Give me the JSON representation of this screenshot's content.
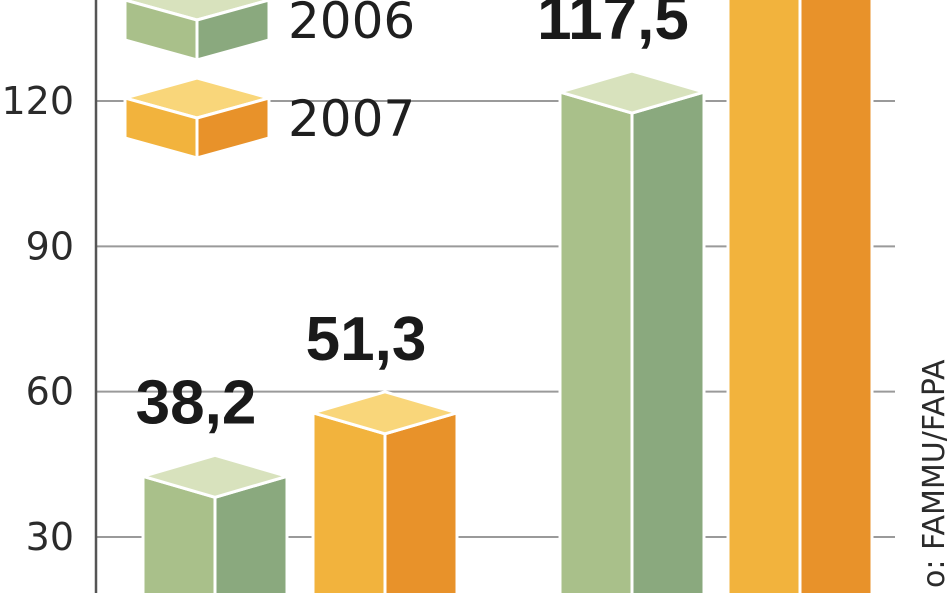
{
  "chart_data": {
    "type": "bar",
    "yticks": [
      30,
      60,
      90,
      120
    ],
    "ylim": [
      18,
      140
    ],
    "grid": true,
    "legend_position": "top-left",
    "series": [
      {
        "name": "2006",
        "values": [
          38.2,
          117.5
        ],
        "labels": [
          "38,2",
          "117,5"
        ],
        "colors": {
          "front": "#a9c08a",
          "side": "#8aa97e",
          "top": "#d8e2bd"
        }
      },
      {
        "name": "2007",
        "values": [
          51.3,
          142
        ],
        "labels": [
          "51,3",
          ""
        ],
        "colors": {
          "front": "#f2b33d",
          "side": "#e8922a",
          "top": "#f9d67a"
        }
      }
    ],
    "source": "o: FAMMU/FAPA"
  }
}
